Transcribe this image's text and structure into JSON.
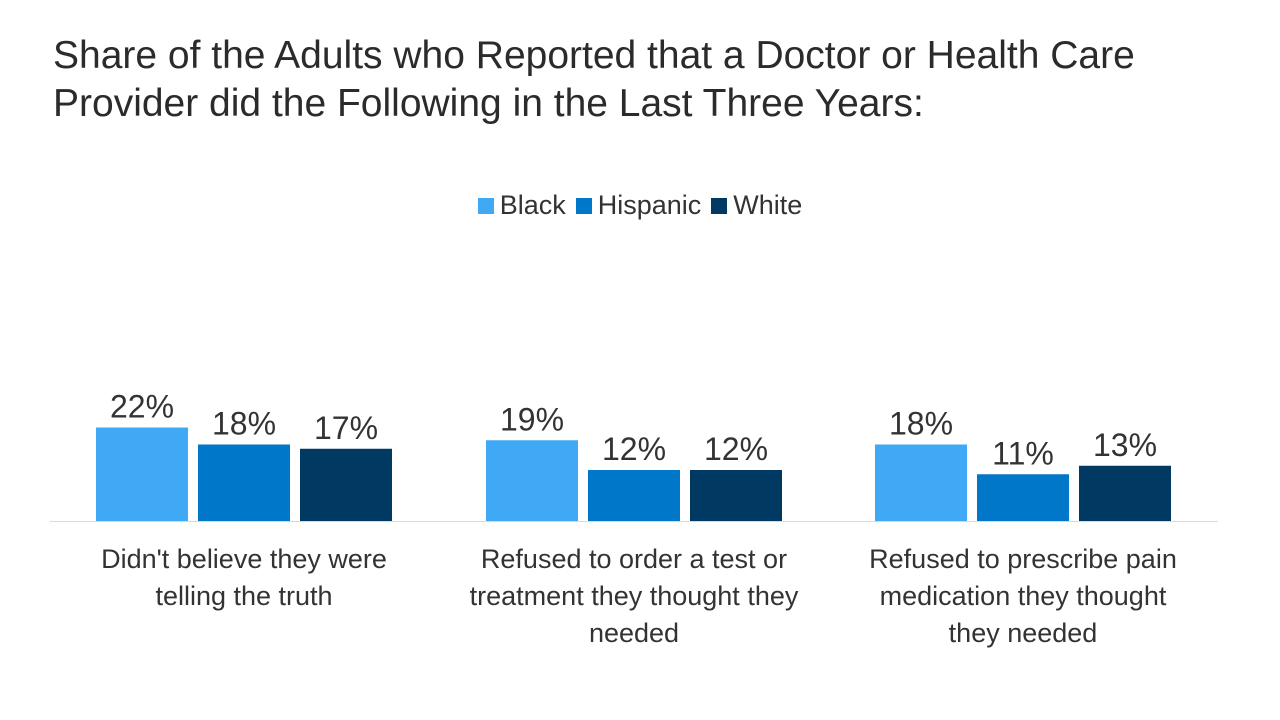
{
  "chart_data": {
    "type": "bar",
    "title": "Share of the Adults who Reported that a Doctor or Health Care Provider did the Following in the Last Three Years:",
    "categories": [
      "Didn't believe they were telling the truth",
      "Refused to order a test or treatment they thought they needed",
      "Refused to prescribe pain medication they thought they needed"
    ],
    "series": [
      {
        "name": "Black",
        "color": "#3fa9f5",
        "values": [
          22,
          19,
          18
        ],
        "labels": [
          "22%",
          "19%",
          "18%"
        ]
      },
      {
        "name": "Hispanic",
        "color": "#0077c8",
        "values": [
          18,
          12,
          11
        ],
        "labels": [
          "18%",
          "12%",
          "11%"
        ]
      },
      {
        "name": "White",
        "color": "#003a63",
        "values": [
          17,
          12,
          13
        ],
        "labels": [
          "17%",
          "12%",
          "13%"
        ]
      }
    ],
    "xlabel": "",
    "ylabel": "",
    "ylim": [
      0,
      30
    ],
    "grid": false,
    "legend": "top-center"
  }
}
